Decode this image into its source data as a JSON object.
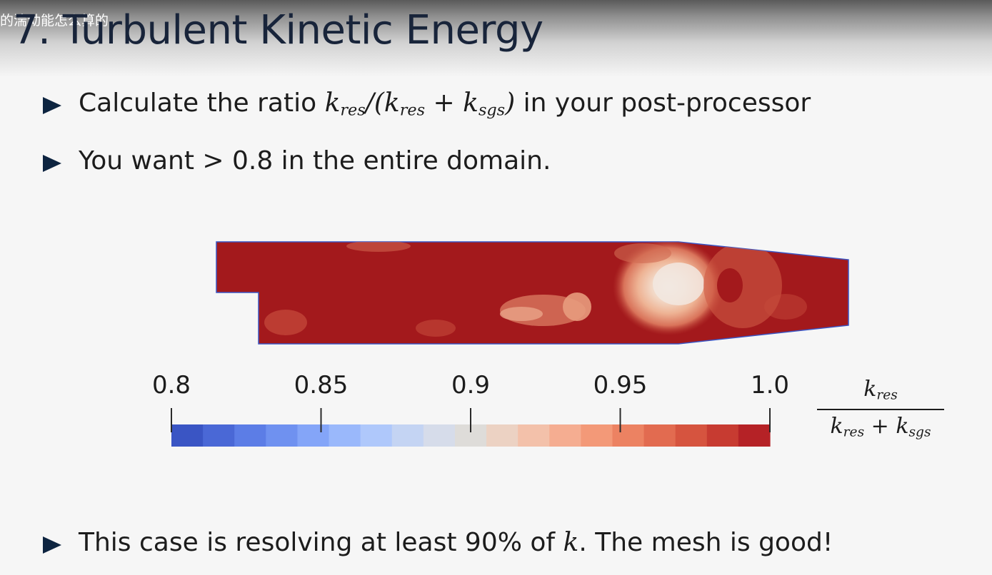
{
  "overlay": {
    "title": "的湍动能怎么算的"
  },
  "slide": {
    "title": "7. Turbulent Kinetic Energy",
    "bullets": [
      {
        "pre": "Calculate the ratio ",
        "post": " in your post-processor"
      },
      {
        "pre": "You want ",
        "gt": ">",
        "post": " 0.8 in the entire domain."
      },
      {
        "pre": "This case is resolving at least 90% of ",
        "k": "k",
        "post": ". The mesh is good!"
      }
    ]
  },
  "colorbar": {
    "min": 0.8,
    "max": 1.0,
    "tick_labels": [
      "0.8",
      "0.85",
      "0.9",
      "0.95",
      "1.0"
    ],
    "tick_values": [
      0.8,
      0.85,
      0.9,
      0.95,
      1.0
    ],
    "colors": [
      "#3a55c4",
      "#4a68d6",
      "#5c7de6",
      "#6f91f0",
      "#84a5f8",
      "#9ab8fb",
      "#afc8fb",
      "#c4d4f3",
      "#d6dcea",
      "#dedcd9",
      "#ecd2c3",
      "#f3c1aa",
      "#f5ad91",
      "#f39978",
      "#ec8262",
      "#e26b50",
      "#d6543f",
      "#c73b31",
      "#b52226"
    ],
    "label_numerator": "k",
    "label_numerator_sub": "res",
    "label_den_a": "k",
    "label_den_a_sub": "res",
    "label_plus": " + ",
    "label_den_b": "k",
    "label_den_b_sub": "sgs"
  },
  "colors": {
    "title": "#18243a",
    "bullet_marker": "#0d2440",
    "domain_fill": "#a3191c"
  }
}
